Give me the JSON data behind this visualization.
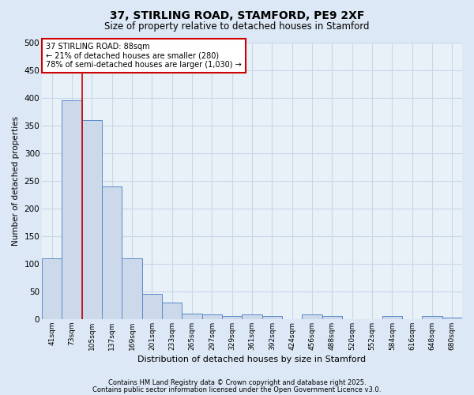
{
  "title_line1": "37, STIRLING ROAD, STAMFORD, PE9 2XF",
  "title_line2": "Size of property relative to detached houses in Stamford",
  "xlabel": "Distribution of detached houses by size in Stamford",
  "ylabel": "Number of detached properties",
  "categories": [
    "41sqm",
    "73sqm",
    "105sqm",
    "137sqm",
    "169sqm",
    "201sqm",
    "233sqm",
    "265sqm",
    "297sqm",
    "329sqm",
    "361sqm",
    "392sqm",
    "424sqm",
    "456sqm",
    "488sqm",
    "520sqm",
    "552sqm",
    "584sqm",
    "616sqm",
    "648sqm",
    "680sqm"
  ],
  "bar_values": [
    110,
    395,
    360,
    240,
    110,
    45,
    30,
    10,
    8,
    5,
    8,
    5,
    0,
    8,
    5,
    0,
    0,
    5,
    0,
    5,
    3
  ],
  "bar_color": "#ccd9eb",
  "bar_edge_color": "#5b8ac7",
  "ylim": [
    0,
    500
  ],
  "yticks": [
    0,
    50,
    100,
    150,
    200,
    250,
    300,
    350,
    400,
    450,
    500
  ],
  "red_line_x": 1.5,
  "annotation_text_l1": "37 STIRLING ROAD: 88sqm",
  "annotation_text_l2": "← 21% of detached houses are smaller (280)",
  "annotation_text_l3": "78% of semi-detached houses are larger (1,030) →",
  "bg_color": "#dce8f5",
  "plot_bg_color": "#e8f0f8",
  "grid_color": "#c8d8e8",
  "footer_line1": "Contains HM Land Registry data © Crown copyright and database right 2025.",
  "footer_line2": "Contains public sector information licensed under the Open Government Licence v3.0."
}
